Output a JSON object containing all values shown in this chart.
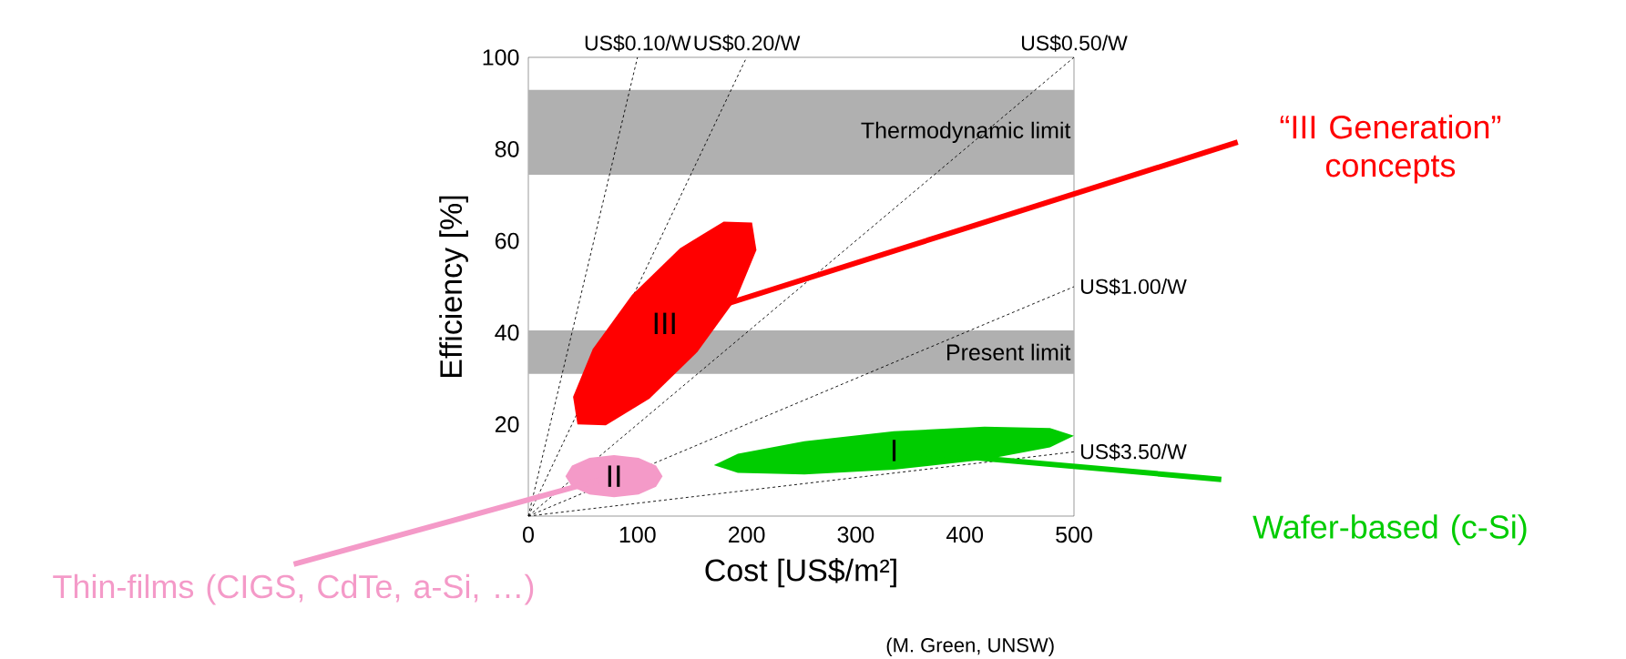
{
  "chart_data": {
    "type": "line",
    "xlabel": "Cost  [US$/m²]",
    "ylabel": "Efficiency [%]",
    "xlim": [
      0,
      500
    ],
    "ylim": [
      0,
      100
    ],
    "xticks": [
      0,
      100,
      200,
      300,
      400,
      500
    ],
    "yticks": [
      20,
      40,
      60,
      80,
      100
    ],
    "grid": false,
    "line_style": "dashed",
    "marker": "none",
    "bands": [
      {
        "axis": "y",
        "from": 74.4,
        "to": 92.9,
        "label": "Thermodynamic limit",
        "color": "#b0b0b0"
      },
      {
        "axis": "y",
        "from": 31,
        "to": 40.5,
        "label": "Present limit",
        "color": "#b0b0b0"
      }
    ],
    "series": [
      {
        "name": "US$0.10/W",
        "color": "#000000",
        "x": [
          0,
          100
        ],
        "values": [
          0,
          100
        ]
      },
      {
        "name": "US$0.20/W",
        "color": "#000000",
        "x": [
          0,
          200
        ],
        "values": [
          0,
          100
        ]
      },
      {
        "name": "US$0.50/W",
        "color": "#000000",
        "x": [
          0,
          500
        ],
        "values": [
          0,
          100
        ]
      },
      {
        "name": "US$1.00/W",
        "color": "#000000",
        "x": [
          0,
          500
        ],
        "values": [
          0,
          50
        ]
      },
      {
        "name": "US$3.50/W",
        "color": "#000000",
        "x": [
          0,
          500
        ],
        "values": [
          0,
          14
        ]
      },
      {
        "type": "area",
        "name": "“III Generation” concepts",
        "color": "#ff0000",
        "x": [
          205,
          209,
          191,
          155,
          111,
          71,
          45,
          41,
          59,
          95,
          139,
          179
        ],
        "values": [
          64,
          58,
          47.6,
          35.8,
          25.6,
          19.8,
          20,
          26,
          36.4,
          48.2,
          58.4,
          64.2
        ]
      },
      {
        "type": "area",
        "name": "Wafer-based (c-Si)",
        "color": "#00cc00",
        "x": [
          500,
          478,
          418,
          335,
          253,
          192,
          170,
          192,
          253,
          335,
          418,
          478
        ],
        "values": [
          17.5,
          19.2,
          19.5,
          18.5,
          16.3,
          13.6,
          11.1,
          9.4,
          9.1,
          10.1,
          12.3,
          15.0
        ]
      },
      {
        "type": "area",
        "name": "Thin-films (CIGS, CdTe, a-Si, …)",
        "color": "#f49ac8",
        "x": [
          123,
          117,
          101,
          78.5,
          56,
          40,
          34,
          40,
          56,
          78.5,
          101,
          117
        ],
        "values": [
          8.7,
          11,
          12.7,
          13.3,
          12.7,
          11,
          8.7,
          6.4,
          4.7,
          4.1,
          4.7,
          6.4
        ]
      }
    ],
    "annotations": [
      "III",
      "I",
      "II",
      "(M. Green, UNSW)"
    ]
  }
}
